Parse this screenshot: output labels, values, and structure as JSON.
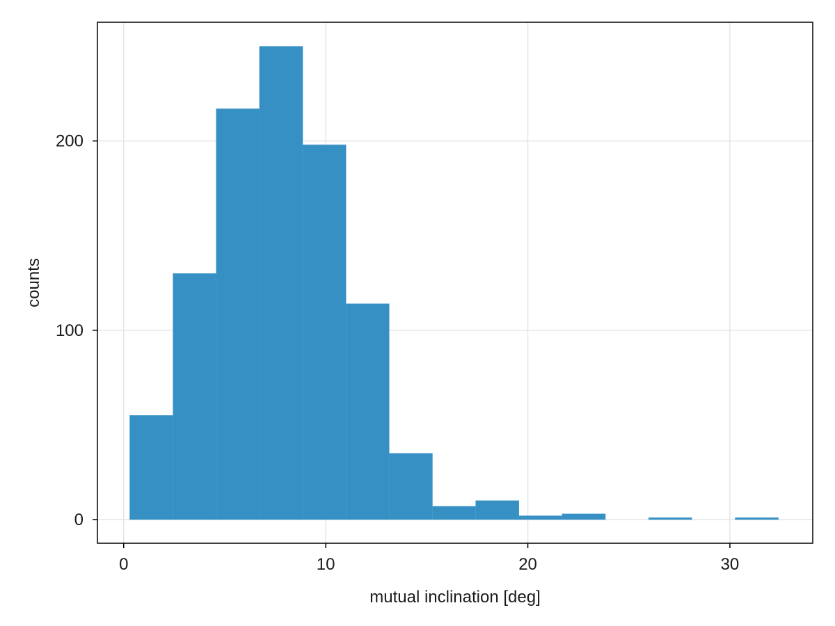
{
  "chart_data": {
    "type": "bar",
    "title": "",
    "xlabel": "mutual inclination [deg]",
    "ylabel": "counts",
    "xlim": [
      -1.3,
      34.1
    ],
    "ylim": [
      -12.5,
      262.7
    ],
    "xticks": [
      0,
      10,
      20,
      30
    ],
    "yticks": [
      0,
      100,
      200
    ],
    "grid": true,
    "legend": "none",
    "bar_color": "#3790c4",
    "grid_color": "#e6e6e6",
    "bins": [
      {
        "x0": 0.3,
        "x1": 2.44,
        "count": 55
      },
      {
        "x0": 2.44,
        "x1": 4.58,
        "count": 130
      },
      {
        "x0": 4.58,
        "x1": 6.72,
        "count": 217
      },
      {
        "x0": 6.72,
        "x1": 8.86,
        "count": 250
      },
      {
        "x0": 8.86,
        "x1": 11.0,
        "count": 198
      },
      {
        "x0": 11.0,
        "x1": 13.14,
        "count": 114
      },
      {
        "x0": 13.14,
        "x1": 15.28,
        "count": 35
      },
      {
        "x0": 15.28,
        "x1": 17.42,
        "count": 7
      },
      {
        "x0": 17.42,
        "x1": 19.56,
        "count": 10
      },
      {
        "x0": 19.56,
        "x1": 21.7,
        "count": 2
      },
      {
        "x0": 21.7,
        "x1": 23.84,
        "count": 3
      },
      {
        "x0": 23.84,
        "x1": 25.98,
        "count": 0
      },
      {
        "x0": 25.98,
        "x1": 28.12,
        "count": 1
      },
      {
        "x0": 28.12,
        "x1": 30.26,
        "count": 0
      },
      {
        "x0": 30.26,
        "x1": 32.4,
        "count": 1
      }
    ]
  }
}
